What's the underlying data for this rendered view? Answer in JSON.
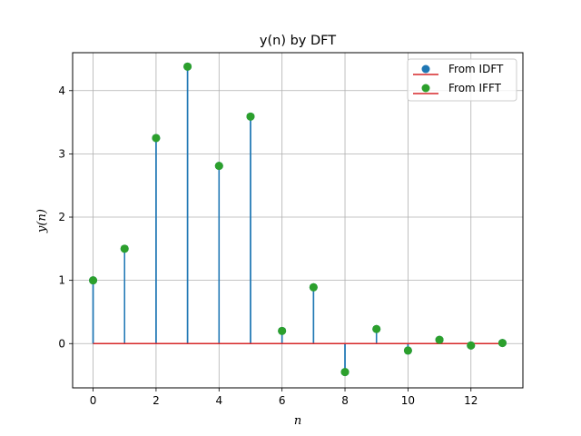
{
  "chart_data": {
    "type": "stem",
    "title": "y(n) by DFT",
    "xlabel": "n",
    "ylabel": "y(n)",
    "xlim": [
      -0.65,
      13.65
    ],
    "ylim": [
      -0.7,
      4.6
    ],
    "xticks": [
      0,
      2,
      4,
      6,
      8,
      10,
      12
    ],
    "yticks": [
      0,
      1,
      2,
      3,
      4
    ],
    "grid": true,
    "legend_position": "top-right",
    "x": [
      0,
      1,
      2,
      3,
      4,
      5,
      6,
      7,
      8,
      9,
      10,
      11,
      12,
      13
    ],
    "series": [
      {
        "name": "From IDFT",
        "marker_color": "#1f77b4",
        "stem_color": "#1f77b4",
        "baseline_color": "#d62728",
        "values": [
          1.0,
          1.5,
          3.25,
          4.38,
          2.81,
          3.59,
          0.2,
          0.89,
          -0.45,
          0.23,
          -0.11,
          0.06,
          -0.03,
          0.01
        ]
      },
      {
        "name": "From IFFT",
        "marker_color": "#2ca02c",
        "stem_color": "#1f77b4",
        "baseline_color": "#d62728",
        "values": [
          1.0,
          1.5,
          3.25,
          4.38,
          2.81,
          3.59,
          0.2,
          0.89,
          -0.45,
          0.23,
          -0.11,
          0.06,
          -0.03,
          0.01
        ]
      }
    ]
  }
}
